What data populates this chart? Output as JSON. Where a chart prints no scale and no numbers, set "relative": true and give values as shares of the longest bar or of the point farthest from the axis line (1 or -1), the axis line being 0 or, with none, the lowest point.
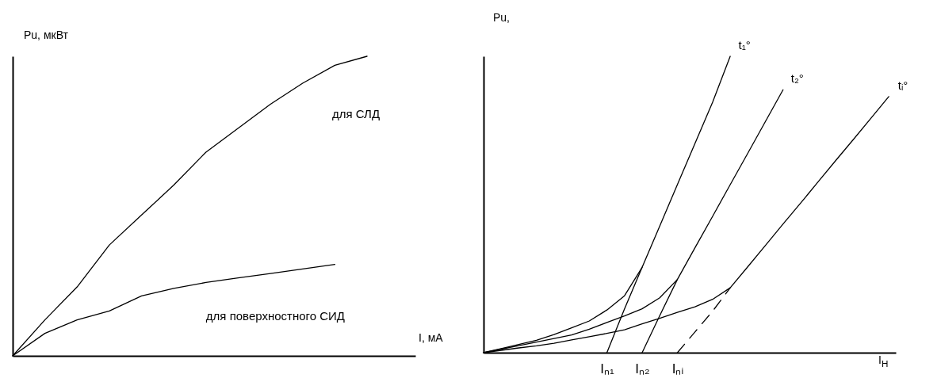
{
  "chart_data": [
    {
      "type": "line",
      "relative": true,
      "categories": [
        null,
        null,
        null,
        null,
        null,
        null,
        null,
        null,
        null,
        null,
        null,
        null
      ],
      "xlabel": "I, мА",
      "ylabel": "Pu, мкВт",
      "series": [
        {
          "name": "для СЛД",
          "color": "#000000",
          "values": [
            0,
            0.12,
            0.23,
            0.37,
            0.47,
            0.57,
            0.68,
            0.76,
            0.84,
            0.91,
            0.97,
            1.0
          ]
        },
        {
          "name": "для поверхностного СИД",
          "color": "#000000",
          "values": [
            0,
            0.075,
            0.12,
            0.15,
            0.2,
            0.225,
            0.245,
            0.26,
            0.275,
            0.29,
            0.305,
            null
          ]
        }
      ]
    },
    {
      "type": "line",
      "relative": true,
      "categories": [
        null,
        null,
        null,
        null,
        null,
        null,
        null,
        "Iₙ₁",
        null,
        "Iₙ₂",
        null,
        "Iₙᵢ",
        null,
        null,
        null,
        null,
        null,
        null,
        null,
        null,
        null,
        null,
        null,
        null
      ],
      "xlabel": "I$_{H}$",
      "ylabel": "Pu,",
      "series": [
        {
          "name": "t₁°",
          "color": "#000000",
          "values": [
            0,
            0.014,
            0.028,
            0.042,
            0.061,
            0.084,
            0.107,
            0.144,
            0.192,
            0.288,
            0.427,
            0.567,
            0.706,
            0.845,
            1.0,
            null,
            null,
            null,
            null,
            null,
            null,
            null,
            null,
            null
          ]
        },
        {
          "name": "t₂°",
          "color": "#000000",
          "values": [
            0,
            0.012,
            0.024,
            0.036,
            0.048,
            0.06,
            0.079,
            0.102,
            0.124,
            0.148,
            0.185,
            0.247,
            0.354,
            0.46,
            0.567,
            0.673,
            0.78,
            0.887,
            null,
            null,
            null,
            null,
            null,
            null
          ]
        },
        {
          "name": "tᵢ°",
          "color": "#000000",
          "values": [
            0,
            0.008,
            0.016,
            0.023,
            0.032,
            0.043,
            0.054,
            0.065,
            0.077,
            0.097,
            0.116,
            0.136,
            0.155,
            0.18,
            0.219,
            0.29,
            0.362,
            0.434,
            0.505,
            0.577,
            0.649,
            0.72,
            0.792,
            0.864
          ]
        },
        {
          "color": "#000000",
          "values": [
            null,
            null,
            null,
            null,
            null,
            null,
            null,
            0,
            0.148,
            0.288,
            null,
            null,
            null,
            null,
            null,
            null,
            null,
            null,
            null,
            null,
            null,
            null,
            null,
            null
          ]
        },
        {
          "color": "#000000",
          "values": [
            null,
            null,
            null,
            null,
            null,
            null,
            null,
            null,
            null,
            0,
            0.125,
            0.247,
            null,
            null,
            null,
            null,
            null,
            null,
            null,
            null,
            null,
            null,
            null,
            null
          ]
        },
        {
          "color": "#000000",
          "values": [
            null,
            null,
            null,
            null,
            null,
            null,
            null,
            null,
            null,
            null,
            null,
            0,
            0.07,
            0.14,
            0.219,
            null,
            null,
            null,
            null,
            null,
            null,
            null,
            null,
            null
          ],
          "line_style": "dashed"
        }
      ]
    }
  ]
}
